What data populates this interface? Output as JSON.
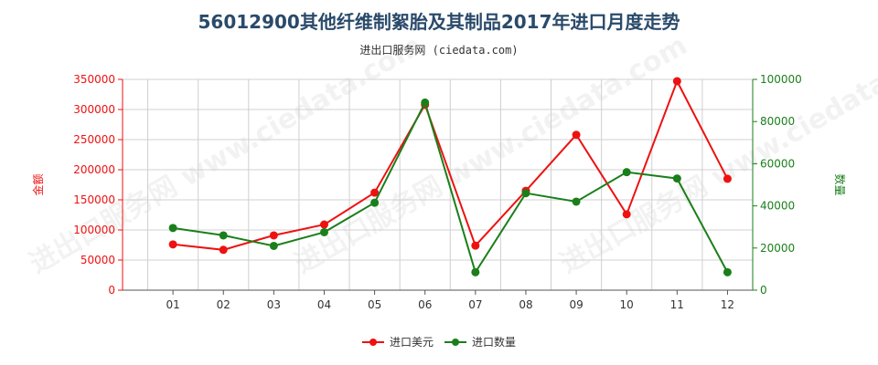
{
  "header": {
    "title": "56012900其他纤维制絮胎及其制品2017年进口月度走势",
    "subtitle": "进出口服务网 (ciedata.com)"
  },
  "watermark": "进出口服务网 www.ciedata.com",
  "colors": {
    "amount": "#ee1111",
    "quantity": "#1a7f1a",
    "grid": "#d0d0d0",
    "axis": "#555555"
  },
  "chart_data": {
    "type": "line",
    "categories": [
      "01",
      "02",
      "03",
      "04",
      "05",
      "06",
      "07",
      "08",
      "09",
      "10",
      "11",
      "12"
    ],
    "y_left": {
      "label": "金额",
      "ylim": [
        0,
        350000
      ],
      "ticks": [
        "0",
        "50000",
        "100000",
        "150000",
        "200000",
        "250000",
        "300000",
        "350000"
      ]
    },
    "y_right": {
      "label": "数量",
      "ylim": [
        0,
        100000
      ],
      "ticks": [
        "0",
        "20000",
        "40000",
        "60000",
        "80000",
        "100000"
      ]
    },
    "series": [
      {
        "name": "进口美元",
        "axis": "left",
        "values": [
          76000,
          67000,
          91000,
          109000,
          162000,
          308000,
          74000,
          165000,
          258000,
          126000,
          347000,
          185000
        ]
      },
      {
        "name": "进口数量",
        "axis": "right",
        "values": [
          29500,
          26000,
          21000,
          27500,
          41500,
          89000,
          8500,
          46000,
          42000,
          56000,
          53000,
          8500
        ]
      }
    ],
    "grid": true,
    "legend": "bottom"
  }
}
